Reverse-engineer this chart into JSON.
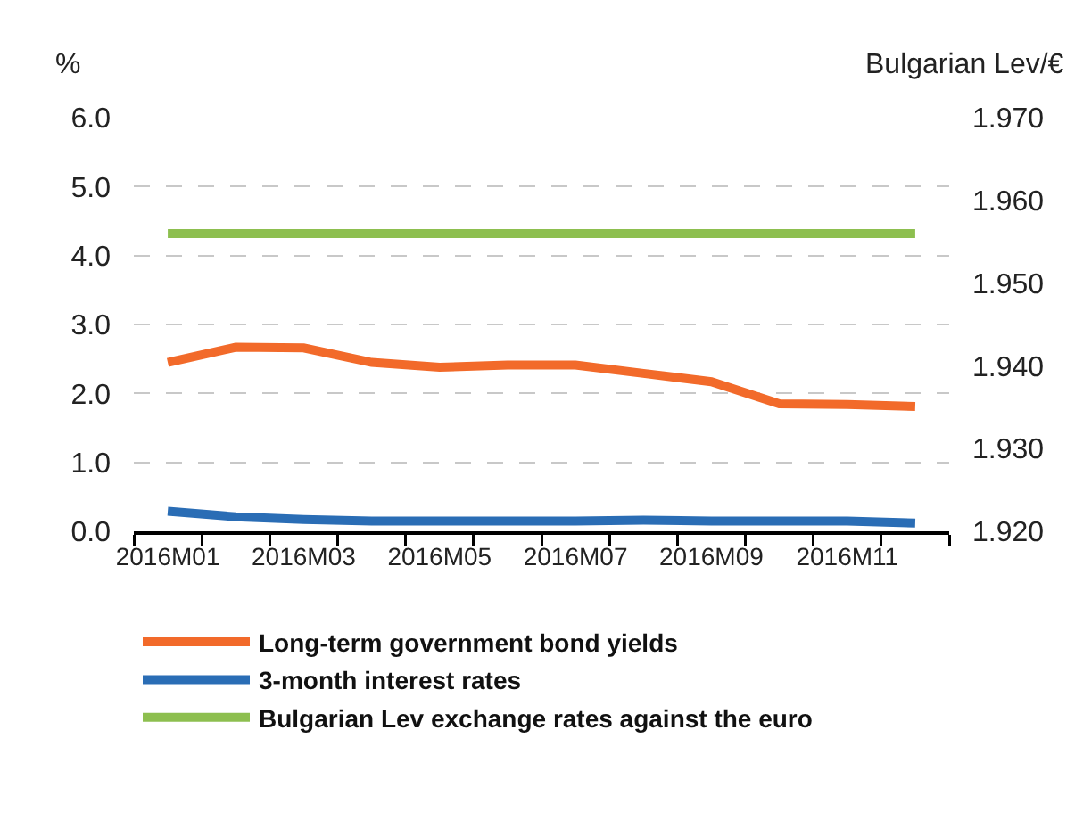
{
  "chart_data": {
    "type": "line",
    "categories": [
      "2016M01",
      null,
      "2016M03",
      null,
      "2016M05",
      null,
      "2016M07",
      null,
      "2016M09",
      null,
      "2016M11",
      null
    ],
    "series": [
      {
        "name": "Long-term government bond yields",
        "color": "#f26a2a",
        "values": [
          2.45,
          2.67,
          2.66,
          2.45,
          2.38,
          2.41,
          2.41,
          2.29,
          2.17,
          1.85,
          1.84,
          1.81
        ]
      },
      {
        "name": "3-month interest rates",
        "color": "#2a6db5",
        "values": [
          0.29,
          0.21,
          0.17,
          0.15,
          0.15,
          0.15,
          0.15,
          0.16,
          0.15,
          0.15,
          0.15,
          0.12
        ]
      },
      {
        "name": "Bulgarian Lev exchange rates against the euro",
        "color": "#8dbf4f",
        "axis": "y2",
        "values": [
          1.956,
          1.956,
          1.956,
          1.956,
          1.956,
          1.956,
          1.956,
          1.956,
          1.956,
          1.956,
          1.956,
          1.956
        ]
      }
    ],
    "ylabel": "%",
    "y2label": "Bulgarian Lev/€",
    "ylim": [
      0,
      6
    ],
    "yticks": [
      {
        "value": 0,
        "label": "0.0"
      },
      {
        "value": 1,
        "label": "1.0"
      },
      {
        "value": 2,
        "label": "2.0"
      },
      {
        "value": 3,
        "label": "3.0"
      },
      {
        "value": 4,
        "label": "4.0"
      },
      {
        "value": 5,
        "label": "5.0"
      },
      {
        "value": 6,
        "label": "6.0"
      }
    ],
    "y2lim": [
      1.92,
      1.97
    ],
    "y2ticks": [
      {
        "value": 1.92,
        "label": "1.920"
      },
      {
        "value": 1.93,
        "label": "1.930"
      },
      {
        "value": 1.94,
        "label": "1.940"
      },
      {
        "value": 1.95,
        "label": "1.950"
      },
      {
        "value": 1.96,
        "label": "1.960"
      },
      {
        "value": 1.97,
        "label": "1.970"
      }
    ],
    "grid": "y",
    "legend": "bottom",
    "marker": "none",
    "line_style": "solid"
  }
}
